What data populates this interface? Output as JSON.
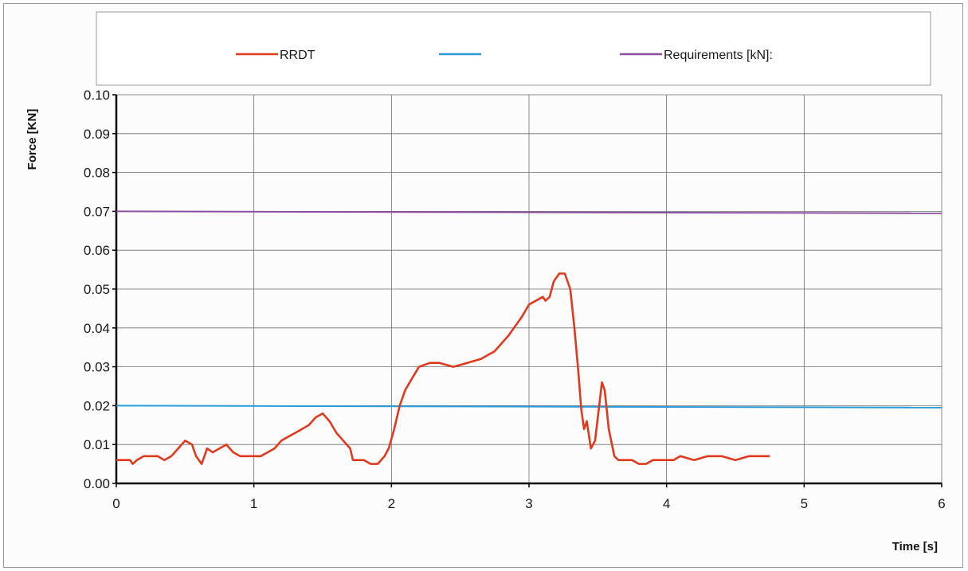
{
  "chart_data": {
    "type": "line",
    "ylabel": "Force [KN]",
    "xlabel": "Time [s]",
    "xlim": [
      0,
      6
    ],
    "ylim": [
      0,
      0.1
    ],
    "xticks": [
      "0",
      "1",
      "2",
      "3",
      "4",
      "5",
      "6"
    ],
    "yticks": [
      "0.00",
      "0.01",
      "0.02",
      "0.03",
      "0.04",
      "0.05",
      "0.06",
      "0.07",
      "0.08",
      "0.09",
      "0.10"
    ],
    "grid": true,
    "legend_position": "top",
    "series": [
      {
        "name": "RRDT",
        "color": "#e03a1e",
        "points": [
          [
            0.0,
            0.006
          ],
          [
            0.1,
            0.006
          ],
          [
            0.12,
            0.005
          ],
          [
            0.15,
            0.006
          ],
          [
            0.2,
            0.007
          ],
          [
            0.25,
            0.007
          ],
          [
            0.3,
            0.007
          ],
          [
            0.35,
            0.006
          ],
          [
            0.4,
            0.007
          ],
          [
            0.45,
            0.009
          ],
          [
            0.5,
            0.011
          ],
          [
            0.55,
            0.01
          ],
          [
            0.58,
            0.007
          ],
          [
            0.62,
            0.005
          ],
          [
            0.66,
            0.009
          ],
          [
            0.7,
            0.008
          ],
          [
            0.75,
            0.009
          ],
          [
            0.8,
            0.01
          ],
          [
            0.85,
            0.008
          ],
          [
            0.9,
            0.007
          ],
          [
            1.0,
            0.007
          ],
          [
            1.05,
            0.007
          ],
          [
            1.1,
            0.008
          ],
          [
            1.15,
            0.009
          ],
          [
            1.2,
            0.011
          ],
          [
            1.25,
            0.012
          ],
          [
            1.3,
            0.013
          ],
          [
            1.35,
            0.014
          ],
          [
            1.4,
            0.015
          ],
          [
            1.45,
            0.017
          ],
          [
            1.5,
            0.018
          ],
          [
            1.55,
            0.016
          ],
          [
            1.6,
            0.013
          ],
          [
            1.65,
            0.011
          ],
          [
            1.7,
            0.009
          ],
          [
            1.72,
            0.006
          ],
          [
            1.8,
            0.006
          ],
          [
            1.85,
            0.005
          ],
          [
            1.9,
            0.005
          ],
          [
            1.95,
            0.007
          ],
          [
            1.98,
            0.009
          ],
          [
            2.02,
            0.014
          ],
          [
            2.06,
            0.02
          ],
          [
            2.1,
            0.024
          ],
          [
            2.15,
            0.027
          ],
          [
            2.2,
            0.03
          ],
          [
            2.28,
            0.031
          ],
          [
            2.35,
            0.031
          ],
          [
            2.45,
            0.03
          ],
          [
            2.55,
            0.031
          ],
          [
            2.65,
            0.032
          ],
          [
            2.75,
            0.034
          ],
          [
            2.85,
            0.038
          ],
          [
            2.95,
            0.043
          ],
          [
            3.0,
            0.046
          ],
          [
            3.05,
            0.047
          ],
          [
            3.1,
            0.048
          ],
          [
            3.12,
            0.047
          ],
          [
            3.15,
            0.048
          ],
          [
            3.18,
            0.052
          ],
          [
            3.22,
            0.054
          ],
          [
            3.26,
            0.054
          ],
          [
            3.3,
            0.05
          ],
          [
            3.33,
            0.04
          ],
          [
            3.36,
            0.028
          ],
          [
            3.38,
            0.019
          ],
          [
            3.4,
            0.014
          ],
          [
            3.42,
            0.016
          ],
          [
            3.45,
            0.009
          ],
          [
            3.48,
            0.011
          ],
          [
            3.51,
            0.02
          ],
          [
            3.53,
            0.026
          ],
          [
            3.55,
            0.024
          ],
          [
            3.58,
            0.014
          ],
          [
            3.62,
            0.007
          ],
          [
            3.65,
            0.006
          ],
          [
            3.75,
            0.006
          ],
          [
            3.8,
            0.005
          ],
          [
            3.85,
            0.005
          ],
          [
            3.9,
            0.006
          ],
          [
            4.0,
            0.006
          ],
          [
            4.05,
            0.006
          ],
          [
            4.1,
            0.007
          ],
          [
            4.2,
            0.006
          ],
          [
            4.3,
            0.007
          ],
          [
            4.4,
            0.007
          ],
          [
            4.5,
            0.006
          ],
          [
            4.6,
            0.007
          ],
          [
            4.7,
            0.007
          ],
          [
            4.75,
            0.007
          ]
        ]
      },
      {
        "name": "",
        "color": "#2a9ad8",
        "points": [
          [
            0,
            0.02
          ],
          [
            6,
            0.0195
          ]
        ]
      },
      {
        "name": "Requirements [kN]:",
        "color": "#8a4fa0",
        "points": [
          [
            0,
            0.07
          ],
          [
            6,
            0.0695
          ]
        ]
      }
    ]
  }
}
